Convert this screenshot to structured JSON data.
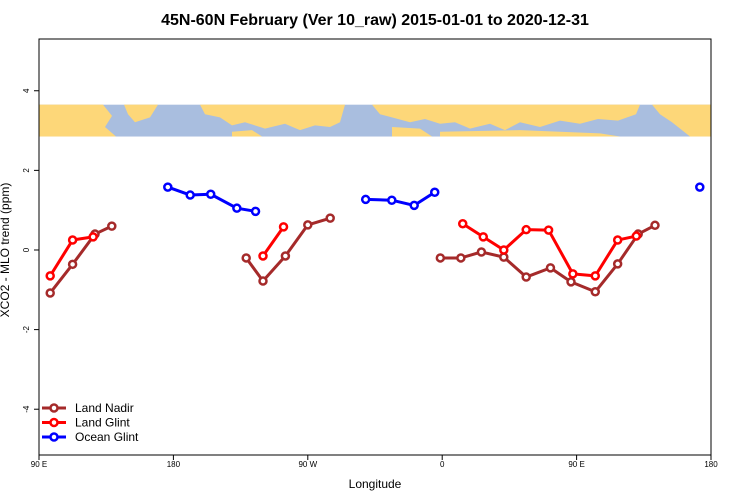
{
  "chart_data": {
    "type": "line",
    "title": "45N-60N February (Ver 10_raw)   2015-01-01 to 2020-12-31",
    "xlabel": "Longitude",
    "ylabel": "XCO2 - MLO trend (ppm)",
    "xlim": [
      90,
      450
    ],
    "ylim": [
      -5.15,
      5.3
    ],
    "x_ticks": [
      {
        "value": 90,
        "label": "90 E"
      },
      {
        "value": 162,
        "label": "180"
      },
      {
        "value": 234,
        "label": "90 W"
      },
      {
        "value": 306,
        "label": "0"
      },
      {
        "value": 378,
        "label": "90 E"
      },
      {
        "value": 450,
        "label": "180"
      }
    ],
    "y_ticks": [
      {
        "value": -4,
        "label": "-4"
      },
      {
        "value": -2,
        "label": "-2"
      },
      {
        "value": 0,
        "label": "0"
      },
      {
        "value": 2,
        "label": "2"
      },
      {
        "value": 4,
        "label": "4"
      }
    ],
    "map_band": {
      "y_min": 2.85,
      "y_max": 3.65,
      "ocean_color": "#a9bedf",
      "land_color": "#fdd779"
    },
    "grid": false,
    "legend_position": "bottom-left",
    "series": [
      {
        "name": "Land Nadir",
        "color": "#a52a2a",
        "segments": [
          [
            [
              96,
              -1.08
            ],
            [
              108,
              -0.36
            ],
            [
              120,
              0.4
            ],
            [
              129,
              0.6
            ]
          ],
          [
            [
              201,
              -0.2
            ],
            [
              210,
              -0.78
            ],
            [
              222,
              -0.15
            ],
            [
              234,
              0.63
            ],
            [
              246,
              0.8
            ]
          ],
          [
            [
              305,
              -0.2
            ],
            [
              316,
              -0.2
            ],
            [
              327,
              -0.05
            ],
            [
              339,
              -0.18
            ],
            [
              351,
              -0.68
            ],
            [
              364,
              -0.45
            ],
            [
              375,
              -0.8
            ],
            [
              388,
              -1.05
            ],
            [
              400,
              -0.35
            ],
            [
              411,
              0.4
            ],
            [
              420,
              0.62
            ]
          ]
        ]
      },
      {
        "name": "Land Glint",
        "color": "#ff0000",
        "segments": [
          [
            [
              96,
              -0.65
            ],
            [
              108,
              0.25
            ],
            [
              119,
              0.33
            ]
          ],
          [
            [
              210,
              -0.15
            ],
            [
              221,
              0.58
            ]
          ],
          [
            [
              317,
              0.66
            ],
            [
              328,
              0.33
            ],
            [
              339,
              0.0
            ],
            [
              351,
              0.51
            ],
            [
              363,
              0.5
            ],
            [
              376,
              -0.6
            ],
            [
              388,
              -0.65
            ],
            [
              400,
              0.25
            ],
            [
              410,
              0.35
            ]
          ]
        ]
      },
      {
        "name": "Ocean Glint",
        "color": "#0000ff",
        "segments": [
          [
            [
              159,
              1.58
            ],
            [
              171,
              1.38
            ],
            [
              182,
              1.4
            ],
            [
              196,
              1.05
            ],
            [
              206,
              0.97
            ]
          ],
          [
            [
              265,
              1.27
            ],
            [
              279,
              1.25
            ],
            [
              291,
              1.12
            ],
            [
              302,
              1.45
            ]
          ],
          [
            [
              444,
              1.58
            ]
          ]
        ]
      }
    ]
  }
}
